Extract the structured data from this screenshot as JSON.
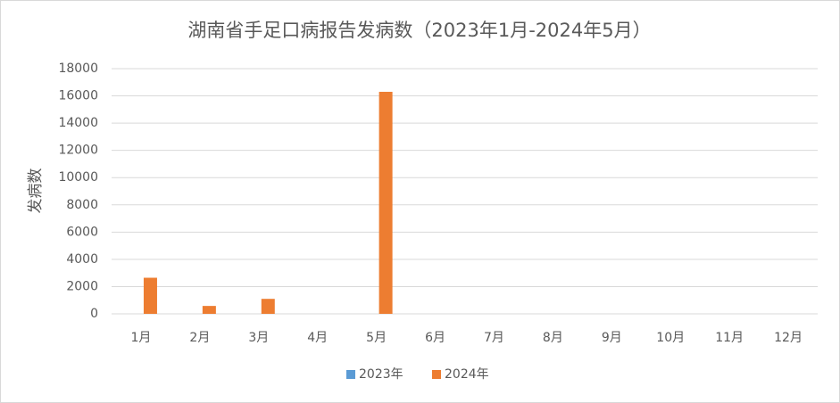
{
  "chart_data": {
    "type": "bar",
    "title": "湖南省手足口病报告发病数（2023年1月-2024年5月）",
    "y_label": "发病数",
    "categories": [
      "1月",
      "2月",
      "3月",
      "4月",
      "5月",
      "6月",
      "7月",
      "8月",
      "9月",
      "10月",
      "11月",
      "12月"
    ],
    "series": [
      {
        "name": "2023年",
        "color": "#5b9bd5",
        "values": [
          null,
          null,
          null,
          null,
          null,
          null,
          null,
          null,
          null,
          null,
          null,
          null
        ]
      },
      {
        "name": "2024年",
        "color": "#ed7d31",
        "values": [
          2650,
          580,
          1100,
          null,
          16300,
          null,
          null,
          null,
          null,
          null,
          null,
          null
        ]
      }
    ],
    "ylim": [
      0,
      18000
    ],
    "yticks": [
      0,
      2000,
      4000,
      6000,
      8000,
      10000,
      12000,
      14000,
      16000,
      18000
    ],
    "grid": true,
    "legend": "bottom"
  }
}
